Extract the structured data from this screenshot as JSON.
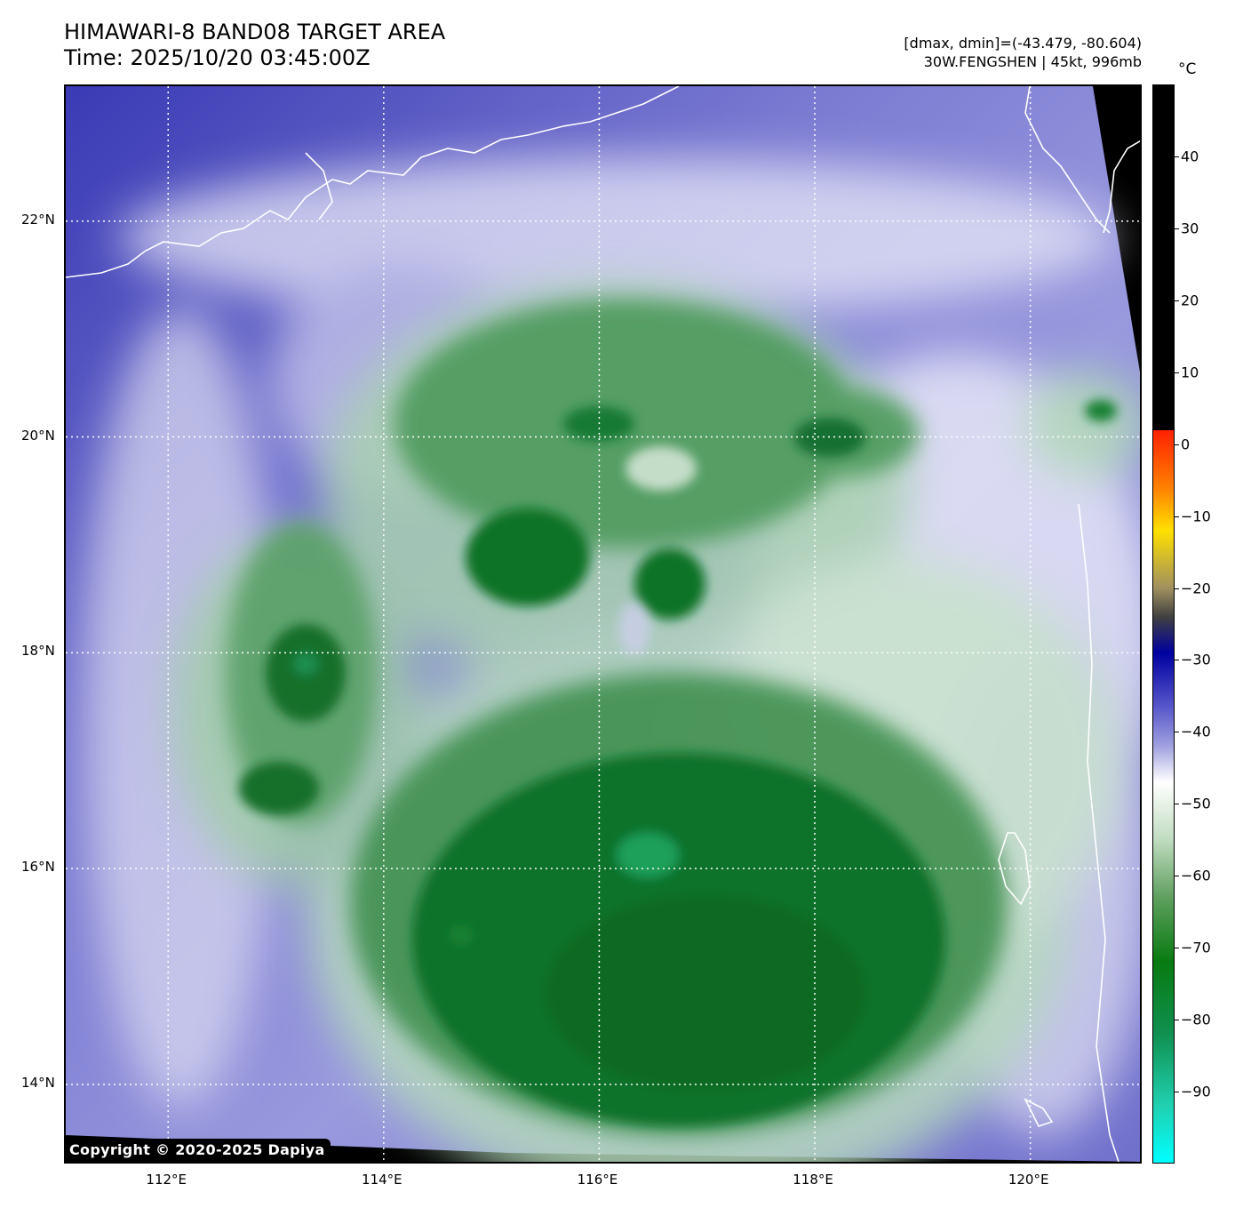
{
  "header": {
    "title_line1": "HIMAWARI-8 BAND08 TARGET AREA",
    "title_line2": "Time: 2025/10/20 03:45:00Z",
    "info_line1": "[dmax, dmin]=(-43.479, -80.604)",
    "info_line2": "30W.FENGSHEN | 45kt, 996mb"
  },
  "colorbar": {
    "unit": "°C",
    "ticks": [
      "40",
      "30",
      "20",
      "10",
      "0",
      "−10",
      "−20",
      "−30",
      "−40",
      "−50",
      "−60",
      "−70",
      "−80",
      "−90"
    ],
    "tick_values": [
      40,
      30,
      20,
      10,
      0,
      -10,
      -20,
      -30,
      -40,
      -50,
      -60,
      -70,
      -80,
      -90
    ],
    "range": [
      -100,
      50
    ]
  },
  "axes": {
    "lat_labels": [
      "22°N",
      "20°N",
      "18°N",
      "16°N",
      "14°N"
    ],
    "lat_values": [
      22,
      20,
      18,
      16,
      14
    ],
    "lon_labels": [
      "112°E",
      "114°E",
      "116°E",
      "118°E",
      "120°E"
    ],
    "lon_values": [
      112,
      114,
      116,
      118,
      120
    ],
    "lat_range": [
      13.25,
      23.25
    ],
    "lon_range": [
      111.05,
      121.05
    ]
  },
  "colors": {
    "cloud_green": "#1e7a32",
    "deep_green": "#0c6e24",
    "clear_blue": "#5a5ac8",
    "deep_blue": "#2a2aa5",
    "white": "#ffffff",
    "off_swath": "#000000"
  },
  "copyright": "Copyright © 2020-2025 Dapiya"
}
